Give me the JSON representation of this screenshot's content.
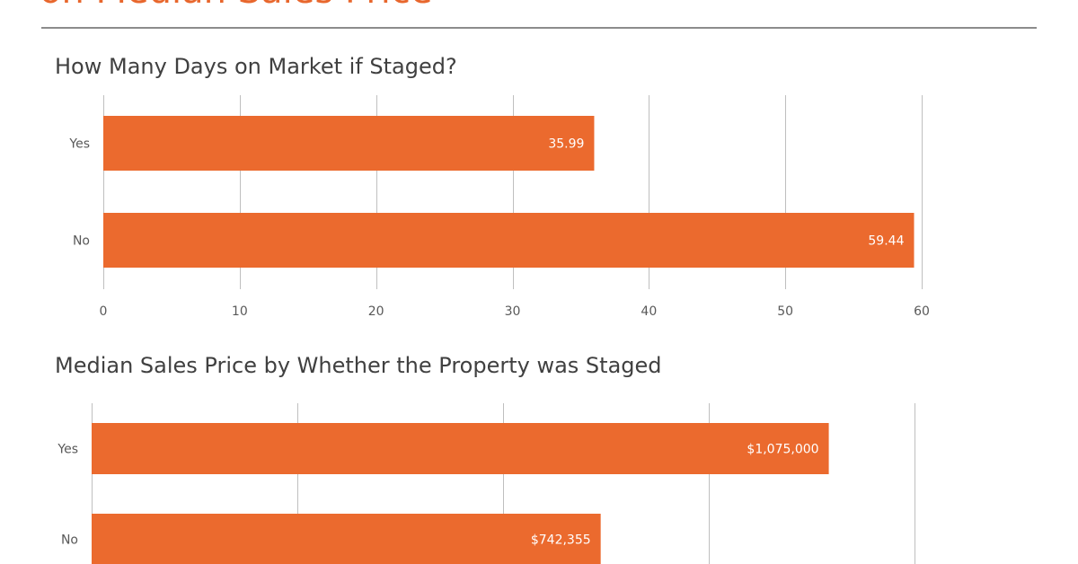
{
  "page": {
    "header": "on Median Sales Price",
    "accent": "#e8672d",
    "bar_color": "#eb6a2e",
    "grid_color": "#bfbfbf"
  },
  "chart_data": [
    {
      "type": "bar",
      "orientation": "horizontal",
      "title": "How Many Days on Market if Staged?",
      "categories": [
        "Yes",
        "No"
      ],
      "values": [
        35.99,
        59.44
      ],
      "value_labels": [
        "35.99",
        "59.44"
      ],
      "xlim": [
        0,
        60
      ],
      "xticks": [
        0,
        10,
        20,
        30,
        40,
        50,
        60
      ],
      "tick_labels": [
        "0",
        "10",
        "20",
        "30",
        "40",
        "50",
        "60"
      ],
      "grid": true
    },
    {
      "type": "bar",
      "orientation": "horizontal",
      "title": "Median Sales Price by Whether the Property was Staged",
      "categories": [
        "Yes",
        "No"
      ],
      "values": [
        1075000,
        742355
      ],
      "value_labels": [
        "$1,075,000",
        "$742,355"
      ],
      "xlim": [
        0,
        1200000
      ],
      "xticks": [
        0,
        300000,
        600000,
        900000,
        1200000
      ],
      "grid": true
    }
  ]
}
